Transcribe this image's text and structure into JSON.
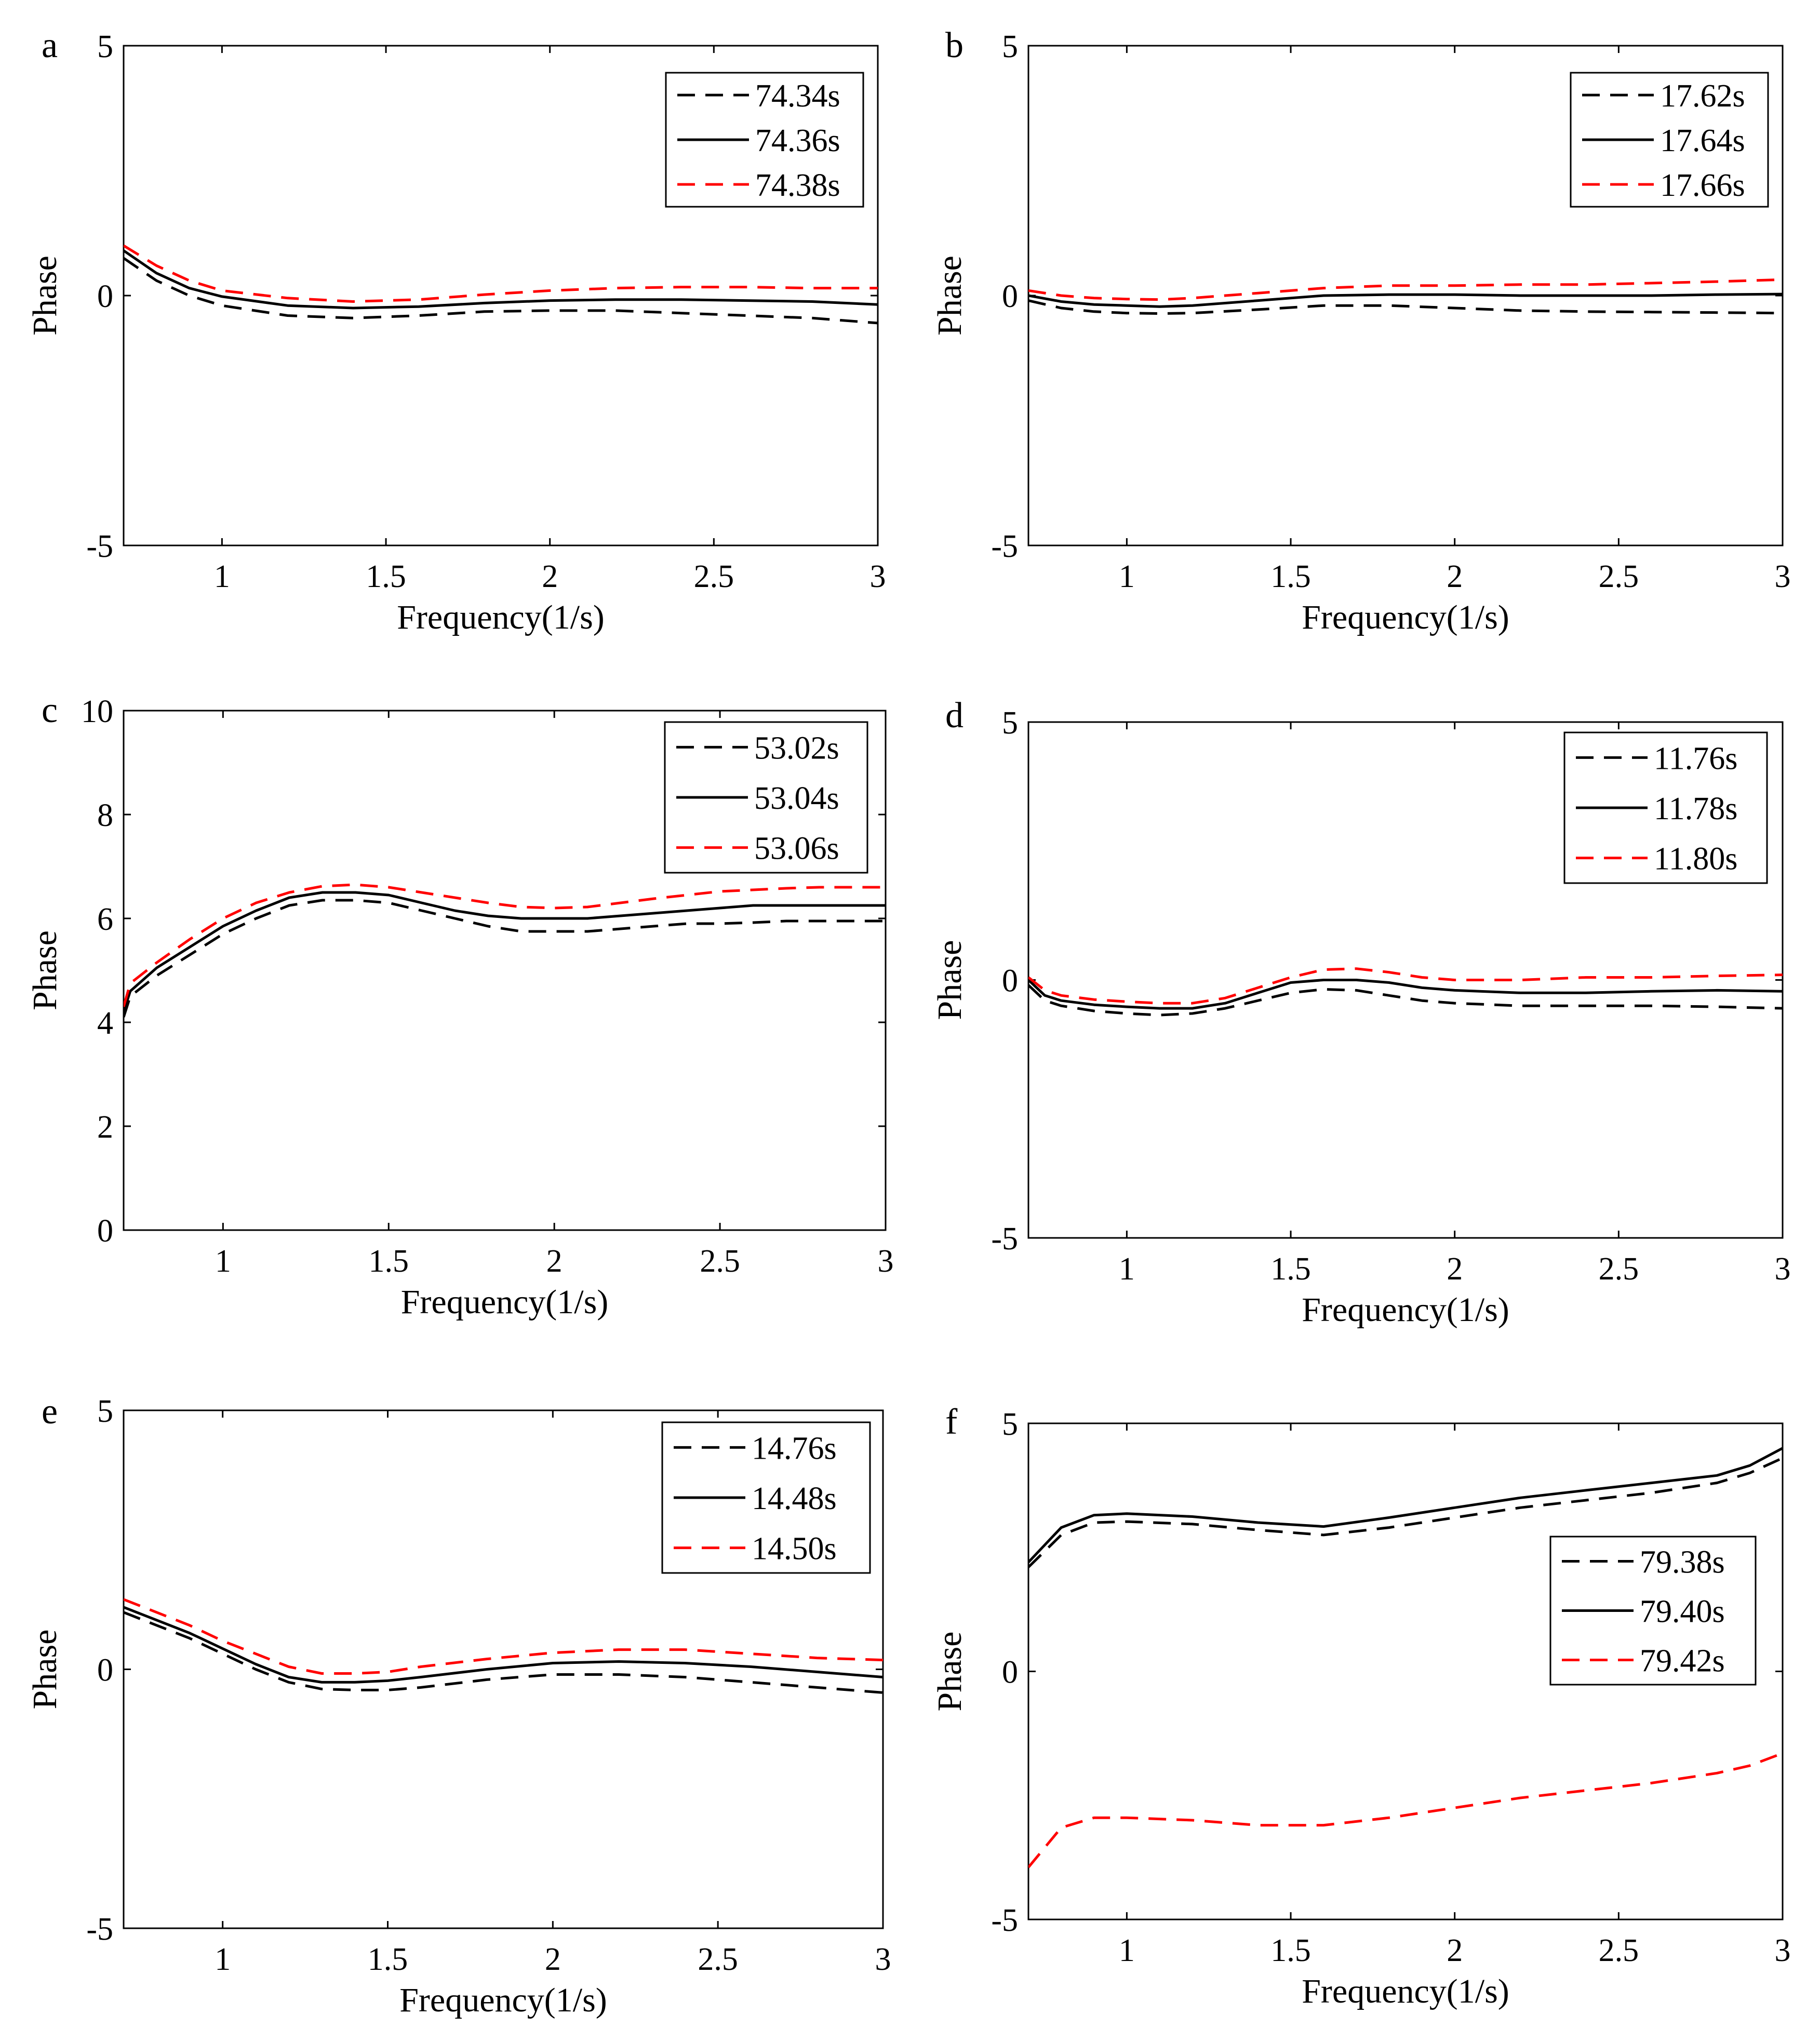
{
  "colors": {
    "black": "#000000",
    "red": "#ff0000"
  },
  "chart_data": [
    {
      "type": "line",
      "panel_label": "a",
      "xlabel": "Frequency(1/s)",
      "ylabel": "Phase",
      "xlim": [
        0.7,
        3.0
      ],
      "ylim": [
        -5,
        5
      ],
      "xticks": [
        1,
        1.5,
        2,
        2.5,
        3
      ],
      "xtick_labels": [
        "1",
        "1.5",
        "2",
        "2.5",
        "3"
      ],
      "yticks": [
        -5,
        0,
        5
      ],
      "ytick_labels": [
        "-5",
        "0",
        "5"
      ],
      "legend_position": "top-right",
      "grid": false,
      "x": [
        0.7,
        0.8,
        0.9,
        1.0,
        1.2,
        1.4,
        1.6,
        1.8,
        2.0,
        2.2,
        2.4,
        2.6,
        2.8,
        3.0
      ],
      "series": [
        {
          "name": "74.34s",
          "color": "#000000",
          "style": "dashed",
          "values": [
            0.75,
            0.3,
            0.0,
            -0.2,
            -0.4,
            -0.45,
            -0.4,
            -0.32,
            -0.3,
            -0.3,
            -0.35,
            -0.4,
            -0.45,
            -0.55
          ]
        },
        {
          "name": "74.36s",
          "color": "#000000",
          "style": "solid",
          "values": [
            0.9,
            0.45,
            0.15,
            -0.02,
            -0.2,
            -0.25,
            -0.22,
            -0.15,
            -0.1,
            -0.08,
            -0.08,
            -0.1,
            -0.12,
            -0.18
          ]
        },
        {
          "name": "74.38s",
          "color": "#ff0000",
          "style": "dashed",
          "values": [
            1.0,
            0.6,
            0.3,
            0.1,
            -0.05,
            -0.12,
            -0.08,
            0.02,
            0.1,
            0.15,
            0.17,
            0.17,
            0.15,
            0.15
          ]
        }
      ]
    },
    {
      "type": "line",
      "panel_label": "b",
      "xlabel": "Frequency(1/s)",
      "ylabel": "Phase",
      "xlim": [
        0.7,
        3.0
      ],
      "ylim": [
        -5,
        5
      ],
      "xticks": [
        1,
        1.5,
        2,
        2.5,
        3
      ],
      "xtick_labels": [
        "1",
        "1.5",
        "2",
        "2.5",
        "3"
      ],
      "yticks": [
        -5,
        0,
        5
      ],
      "ytick_labels": [
        "-5",
        "0",
        "5"
      ],
      "legend_position": "top-right",
      "grid": false,
      "x": [
        0.7,
        0.8,
        0.9,
        1.0,
        1.1,
        1.2,
        1.4,
        1.6,
        1.8,
        2.0,
        2.2,
        2.4,
        2.6,
        2.8,
        3.0
      ],
      "series": [
        {
          "name": "17.62s",
          "color": "#000000",
          "style": "dashed",
          "values": [
            -0.1,
            -0.25,
            -0.32,
            -0.35,
            -0.36,
            -0.35,
            -0.28,
            -0.2,
            -0.2,
            -0.25,
            -0.3,
            -0.32,
            -0.33,
            -0.34,
            -0.35
          ]
        },
        {
          "name": "17.64s",
          "color": "#000000",
          "style": "solid",
          "values": [
            0.0,
            -0.12,
            -0.18,
            -0.2,
            -0.22,
            -0.2,
            -0.1,
            0.0,
            0.02,
            0.02,
            0.0,
            0.0,
            0.0,
            0.02,
            0.03
          ]
        },
        {
          "name": "17.66s",
          "color": "#ff0000",
          "style": "dashed",
          "values": [
            0.1,
            0.0,
            -0.05,
            -0.07,
            -0.08,
            -0.05,
            0.05,
            0.15,
            0.2,
            0.2,
            0.22,
            0.22,
            0.25,
            0.28,
            0.32
          ]
        }
      ]
    },
    {
      "type": "line",
      "panel_label": "c",
      "xlabel": "Frequency(1/s)",
      "ylabel": "Phase",
      "xlim": [
        0.7,
        3.0
      ],
      "ylim": [
        0,
        10
      ],
      "xticks": [
        1,
        1.5,
        2,
        2.5,
        3
      ],
      "xtick_labels": [
        "1",
        "1.5",
        "2",
        "2.5",
        "3"
      ],
      "yticks": [
        0,
        2,
        4,
        6,
        8,
        10
      ],
      "ytick_labels": [
        "0",
        "2",
        "4",
        "6",
        "8",
        "10"
      ],
      "legend_position": "top-right",
      "grid": false,
      "x": [
        0.7,
        0.72,
        0.8,
        0.9,
        1.0,
        1.1,
        1.2,
        1.3,
        1.4,
        1.5,
        1.6,
        1.7,
        1.8,
        1.9,
        2.0,
        2.1,
        2.2,
        2.3,
        2.4,
        2.5,
        2.6,
        2.7,
        2.8,
        2.9,
        3.0
      ],
      "series": [
        {
          "name": "53.02s",
          "color": "#000000",
          "style": "dashed",
          "values": [
            4.1,
            4.5,
            4.9,
            5.3,
            5.7,
            6.0,
            6.25,
            6.35,
            6.35,
            6.3,
            6.15,
            6.0,
            5.85,
            5.75,
            5.75,
            5.75,
            5.8,
            5.85,
            5.9,
            5.9,
            5.92,
            5.95,
            5.95,
            5.95,
            5.95
          ]
        },
        {
          "name": "53.04s",
          "color": "#000000",
          "style": "solid",
          "values": [
            4.2,
            4.6,
            5.05,
            5.45,
            5.85,
            6.15,
            6.4,
            6.5,
            6.5,
            6.45,
            6.3,
            6.15,
            6.05,
            6.0,
            6.0,
            6.0,
            6.05,
            6.1,
            6.15,
            6.2,
            6.25,
            6.25,
            6.25,
            6.25,
            6.25
          ]
        },
        {
          "name": "53.06s",
          "color": "#ff0000",
          "style": "dashed",
          "values": [
            4.3,
            4.75,
            5.15,
            5.6,
            6.0,
            6.3,
            6.5,
            6.62,
            6.65,
            6.6,
            6.5,
            6.4,
            6.3,
            6.22,
            6.2,
            6.22,
            6.3,
            6.38,
            6.45,
            6.52,
            6.55,
            6.58,
            6.6,
            6.6,
            6.6
          ]
        }
      ]
    },
    {
      "type": "line",
      "panel_label": "d",
      "xlabel": "Frequency(1/s)",
      "ylabel": "Phase",
      "xlim": [
        0.7,
        3.0
      ],
      "ylim": [
        -5,
        5
      ],
      "xticks": [
        1,
        1.5,
        2,
        2.5,
        3
      ],
      "xtick_labels": [
        "1",
        "1.5",
        "2",
        "2.5",
        "3"
      ],
      "yticks": [
        -5,
        0,
        5
      ],
      "ytick_labels": [
        "-5",
        "0",
        "5"
      ],
      "legend_position": "top-right",
      "grid": false,
      "x": [
        0.7,
        0.75,
        0.8,
        0.9,
        1.0,
        1.1,
        1.2,
        1.3,
        1.4,
        1.5,
        1.6,
        1.7,
        1.8,
        1.9,
        2.0,
        2.2,
        2.4,
        2.6,
        2.8,
        3.0
      ],
      "series": [
        {
          "name": "11.76s",
          "color": "#000000",
          "style": "dashed",
          "values": [
            -0.1,
            -0.4,
            -0.5,
            -0.6,
            -0.65,
            -0.68,
            -0.65,
            -0.55,
            -0.4,
            -0.25,
            -0.18,
            -0.2,
            -0.3,
            -0.4,
            -0.45,
            -0.5,
            -0.5,
            -0.5,
            -0.52,
            -0.55
          ]
        },
        {
          "name": "11.78s",
          "color": "#000000",
          "style": "solid",
          "values": [
            0.0,
            -0.3,
            -0.4,
            -0.48,
            -0.52,
            -0.55,
            -0.55,
            -0.45,
            -0.25,
            -0.05,
            0.0,
            0.0,
            -0.05,
            -0.15,
            -0.2,
            -0.25,
            -0.25,
            -0.22,
            -0.2,
            -0.22
          ]
        },
        {
          "name": "11.80s",
          "color": "#ff0000",
          "style": "dashed",
          "values": [
            0.05,
            -0.2,
            -0.3,
            -0.38,
            -0.42,
            -0.45,
            -0.45,
            -0.35,
            -0.15,
            0.05,
            0.2,
            0.22,
            0.15,
            0.05,
            0.0,
            0.0,
            0.05,
            0.05,
            0.08,
            0.1
          ]
        }
      ]
    },
    {
      "type": "line",
      "panel_label": "e",
      "xlabel": "Frequency(1/s)",
      "ylabel": "Phase",
      "xlim": [
        0.7,
        3.0
      ],
      "ylim": [
        -5,
        5
      ],
      "xticks": [
        1,
        1.5,
        2,
        2.5,
        3
      ],
      "xtick_labels": [
        "1",
        "1.5",
        "2",
        "2.5",
        "3"
      ],
      "yticks": [
        -5,
        0,
        5
      ],
      "ytick_labels": [
        "-5",
        "0",
        "5"
      ],
      "legend_position": "top-right",
      "grid": false,
      "x": [
        0.7,
        0.8,
        0.9,
        1.0,
        1.1,
        1.2,
        1.3,
        1.4,
        1.5,
        1.6,
        1.8,
        2.0,
        2.2,
        2.4,
        2.6,
        2.8,
        3.0
      ],
      "series": [
        {
          "name": "14.76s",
          "color": "#000000",
          "style": "dashed",
          "values": [
            1.1,
            0.85,
            0.6,
            0.3,
            0.0,
            -0.25,
            -0.38,
            -0.4,
            -0.4,
            -0.35,
            -0.2,
            -0.1,
            -0.1,
            -0.15,
            -0.25,
            -0.35,
            -0.45
          ]
        },
        {
          "name": "14.48s",
          "color": "#000000",
          "style": "solid",
          "values": [
            1.2,
            0.95,
            0.7,
            0.4,
            0.1,
            -0.15,
            -0.25,
            -0.25,
            -0.22,
            -0.15,
            0.0,
            0.12,
            0.15,
            0.12,
            0.05,
            -0.05,
            -0.15
          ]
        },
        {
          "name": "14.50s",
          "color": "#ff0000",
          "style": "dashed",
          "values": [
            1.35,
            1.1,
            0.85,
            0.55,
            0.3,
            0.05,
            -0.08,
            -0.08,
            -0.05,
            0.05,
            0.2,
            0.32,
            0.38,
            0.38,
            0.3,
            0.22,
            0.18
          ]
        }
      ]
    },
    {
      "type": "line",
      "panel_label": "f",
      "xlabel": "Frequency(1/s)",
      "ylabel": "Phase",
      "xlim": [
        0.7,
        3.0
      ],
      "ylim": [
        -5,
        5
      ],
      "xticks": [
        1,
        1.5,
        2,
        2.5,
        3
      ],
      "xtick_labels": [
        "1",
        "1.5",
        "2",
        "2.5",
        "3"
      ],
      "yticks": [
        -5,
        0,
        5
      ],
      "ytick_labels": [
        "-5",
        "0",
        "5"
      ],
      "legend_position": "middle-right",
      "grid": false,
      "x": [
        0.7,
        0.8,
        0.9,
        1.0,
        1.2,
        1.4,
        1.6,
        1.8,
        2.0,
        2.2,
        2.4,
        2.6,
        2.8,
        2.9,
        3.0
      ],
      "series": [
        {
          "name": "79.38s",
          "color": "#000000",
          "style": "dashed",
          "values": [
            2.1,
            2.75,
            3.0,
            3.02,
            2.97,
            2.85,
            2.75,
            2.9,
            3.1,
            3.3,
            3.45,
            3.6,
            3.8,
            4.0,
            4.3
          ]
        },
        {
          "name": "79.40s",
          "color": "#000000",
          "style": "solid",
          "values": [
            2.2,
            2.9,
            3.15,
            3.18,
            3.12,
            3.0,
            2.92,
            3.1,
            3.3,
            3.5,
            3.65,
            3.8,
            3.95,
            4.15,
            4.5
          ]
        },
        {
          "name": "79.42s",
          "color": "#ff0000",
          "style": "dashed",
          "values": [
            -3.95,
            -3.15,
            -2.95,
            -2.95,
            -3.0,
            -3.1,
            -3.1,
            -2.95,
            -2.75,
            -2.55,
            -2.4,
            -2.25,
            -2.05,
            -1.9,
            -1.65
          ]
        }
      ]
    }
  ]
}
